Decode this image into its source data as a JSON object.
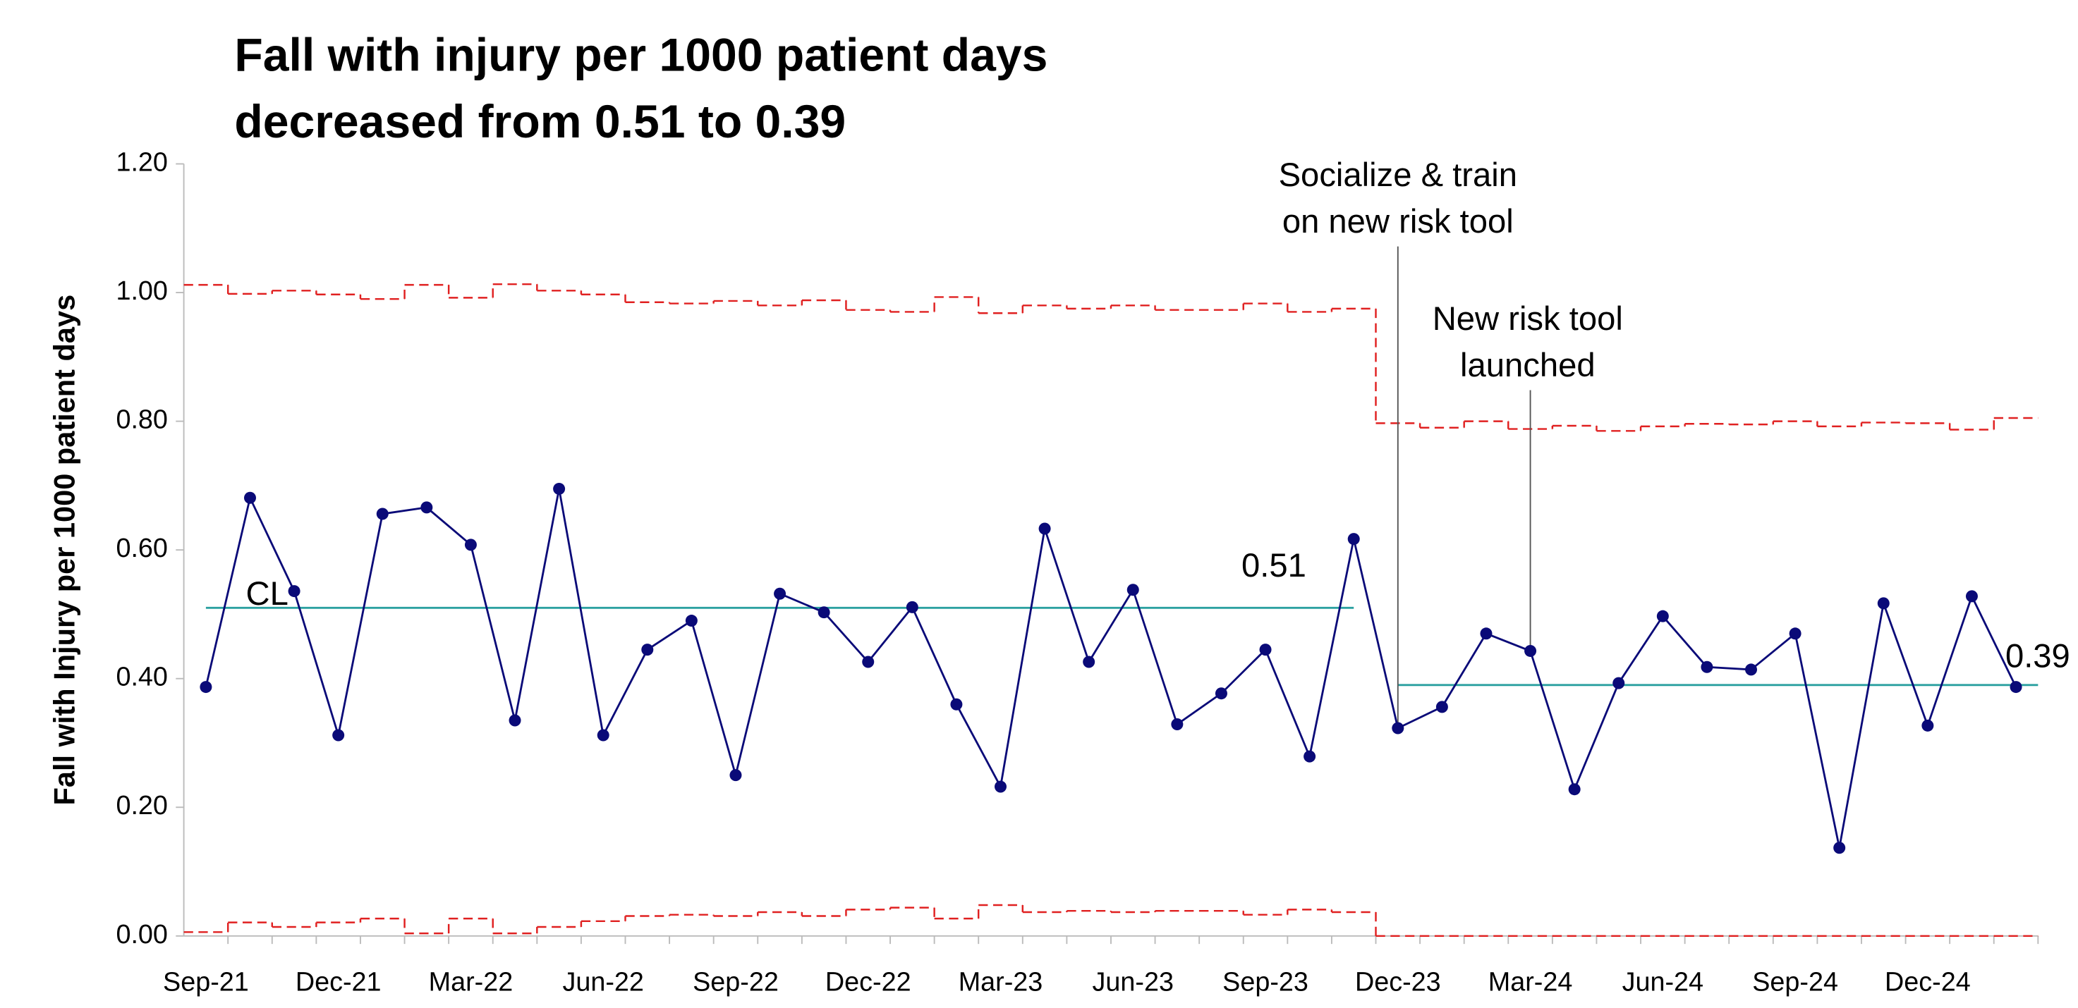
{
  "chart_data": {
    "type": "control",
    "title": "Fall with injury per 1000 patient days",
    "subtitle": "decreased from 0.51 to 0.39",
    "y_label": "Fall with Injury per 1000 patient days",
    "categories": [
      "Sep-21",
      null,
      null,
      "Dec-21",
      null,
      null,
      "Mar-22",
      null,
      null,
      "Jun-22",
      null,
      null,
      "Sep-22",
      null,
      null,
      "Dec-22",
      null,
      null,
      "Mar-23",
      null,
      null,
      "Jun-23",
      null,
      null,
      "Sep-23",
      null,
      null,
      "Dec-23",
      null,
      null,
      "Mar-24",
      null,
      null,
      "Jun-24",
      null,
      null,
      "Sep-24",
      null,
      null,
      "Dec-24",
      null,
      null
    ],
    "values": [
      0.387,
      0.681,
      0.536,
      0.312,
      0.656,
      0.666,
      0.608,
      0.335,
      0.695,
      0.312,
      0.445,
      0.49,
      0.25,
      0.532,
      0.503,
      0.426,
      0.511,
      0.36,
      0.232,
      0.633,
      0.426,
      0.538,
      0.329,
      0.377,
      0.445,
      0.279,
      0.617,
      0.323,
      0.356,
      0.47,
      0.443,
      0.228,
      0.393,
      0.497,
      0.418,
      0.414,
      0.47,
      0.137,
      0.517,
      0.327,
      0.528,
      0.387
    ],
    "color": "#0a0a78",
    "cl": [
      0.51,
      0.51,
      0.51,
      0.51,
      0.51,
      0.51,
      0.51,
      0.51,
      0.51,
      0.51,
      0.51,
      0.51,
      0.51,
      0.51,
      0.51,
      0.51,
      0.51,
      0.51,
      0.51,
      0.51,
      0.51,
      0.51,
      0.51,
      0.51,
      0.51,
      0.51,
      0.51,
      0.39,
      0.39,
      0.39,
      0.39,
      0.39,
      0.39,
      0.39,
      0.39,
      0.39,
      0.39,
      0.39,
      0.39,
      0.39,
      0.39,
      0.39
    ],
    "cl_color": "#2aa0a0",
    "cl_label": "CL",
    "ucl": [
      1.012,
      0.998,
      1.003,
      0.997,
      0.99,
      1.012,
      0.992,
      1.013,
      1.003,
      0.997,
      0.985,
      0.983,
      0.987,
      0.98,
      0.988,
      0.973,
      0.97,
      0.993,
      0.968,
      0.98,
      0.975,
      0.98,
      0.973,
      0.973,
      0.983,
      0.97,
      0.975,
      0.797,
      0.79,
      0.8,
      0.788,
      0.793,
      0.785,
      0.792,
      0.796,
      0.795,
      0.8,
      0.792,
      0.798,
      0.797,
      0.787,
      0.805
    ],
    "lcl": [
      0.006,
      0.021,
      0.014,
      0.021,
      0.027,
      0.004,
      0.027,
      0.004,
      0.014,
      0.023,
      0.031,
      0.033,
      0.031,
      0.037,
      0.031,
      0.041,
      0.044,
      0.027,
      0.048,
      0.037,
      0.039,
      0.037,
      0.039,
      0.039,
      0.033,
      0.041,
      0.037,
      0,
      0,
      0,
      0,
      0,
      0,
      0,
      0,
      0,
      0,
      0,
      0,
      0,
      0,
      0
    ],
    "limit_color": "#e02020",
    "ylim": [
      0,
      1.2
    ],
    "yticks": [
      {
        "value": 0,
        "label": "0.00"
      },
      {
        "value": 0.2,
        "label": "0.20"
      },
      {
        "value": 0.4,
        "label": "0.40"
      },
      {
        "value": 0.6,
        "label": "0.60"
      },
      {
        "value": 0.8,
        "label": "0.80"
      },
      {
        "value": 1.0,
        "label": "1.00"
      },
      {
        "value": 1.2,
        "label": "1.20"
      }
    ],
    "annotations": [
      {
        "x": "Dec-23",
        "lines": [
          "Socialize & train",
          "on new risk tool"
        ]
      },
      {
        "x": "Mar-24",
        "lines": [
          "New risk tool",
          "launched"
        ]
      }
    ]
  }
}
